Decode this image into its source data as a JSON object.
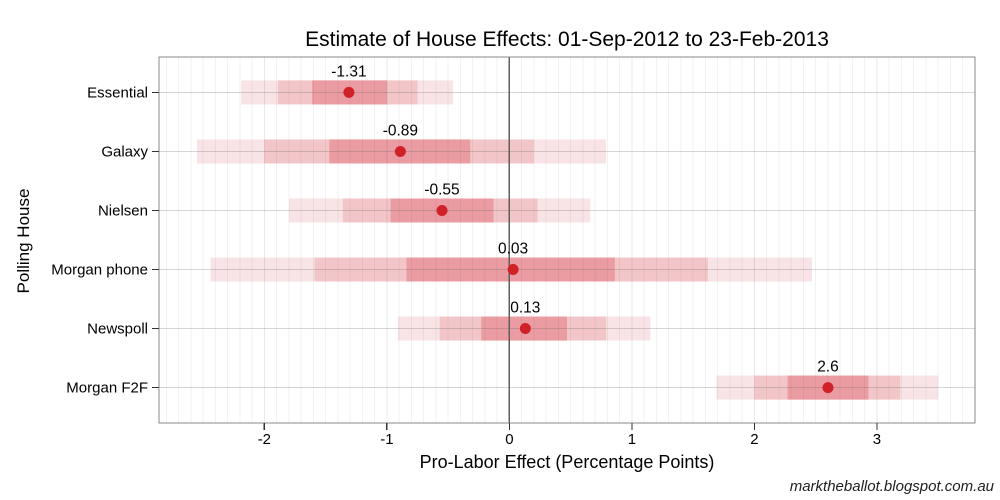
{
  "watermark": "marktheballot.blogspot.com.au",
  "chart_data": {
    "type": "interval",
    "title": "Estimate of House Effects: 01-Sep-2012 to 23-Feb-2013",
    "xlabel": "Pro-Labor Effect (Percentage Points)",
    "ylabel": "Polling House",
    "xlim": [
      -2.86,
      3.8
    ],
    "x_ticks": [
      -2,
      -1,
      0,
      1,
      2,
      3
    ],
    "minor_grid_step": 0.1,
    "zero_line_x": 0,
    "grid": true,
    "legend": "none",
    "colors": {
      "point": "#cf2127",
      "band_inner": "#ea9ca2",
      "band_mid": "#f2c6c9",
      "band_outer": "#f8e4e6",
      "zero_line": "#5f5f5f",
      "panel_border": "#8a8a8a"
    },
    "categories": [
      "Essential",
      "Galaxy",
      "Nielsen",
      "Morgan phone",
      "Newspoll",
      "Morgan F2F"
    ],
    "series": [
      {
        "house": "Essential",
        "estimate": -1.31,
        "label": "-1.31",
        "inner": [
          -1.61,
          -1.0
        ],
        "mid": [
          -1.89,
          -0.75
        ],
        "outer": [
          -2.19,
          -0.46
        ]
      },
      {
        "house": "Galaxy",
        "estimate": -0.89,
        "label": "-0.89",
        "inner": [
          -1.47,
          -0.32
        ],
        "mid": [
          -2.0,
          0.2
        ],
        "outer": [
          -2.55,
          0.79
        ]
      },
      {
        "house": "Nielsen",
        "estimate": -0.55,
        "label": "-0.55",
        "inner": [
          -0.97,
          -0.13
        ],
        "mid": [
          -1.36,
          0.23
        ],
        "outer": [
          -1.8,
          0.66
        ]
      },
      {
        "house": "Morgan phone",
        "estimate": 0.03,
        "label": "0.03",
        "inner": [
          -0.84,
          0.86
        ],
        "mid": [
          -1.59,
          1.62
        ],
        "outer": [
          -2.44,
          2.47
        ]
      },
      {
        "house": "Newspoll",
        "estimate": 0.13,
        "label": "0.13",
        "inner": [
          -0.23,
          0.47
        ],
        "mid": [
          -0.57,
          0.79
        ],
        "outer": [
          -0.91,
          1.15
        ]
      },
      {
        "house": "Morgan F2F",
        "estimate": 2.6,
        "label": "2.6",
        "inner": [
          2.27,
          2.93
        ],
        "mid": [
          2.0,
          3.19
        ],
        "outer": [
          1.69,
          3.5
        ]
      }
    ]
  }
}
